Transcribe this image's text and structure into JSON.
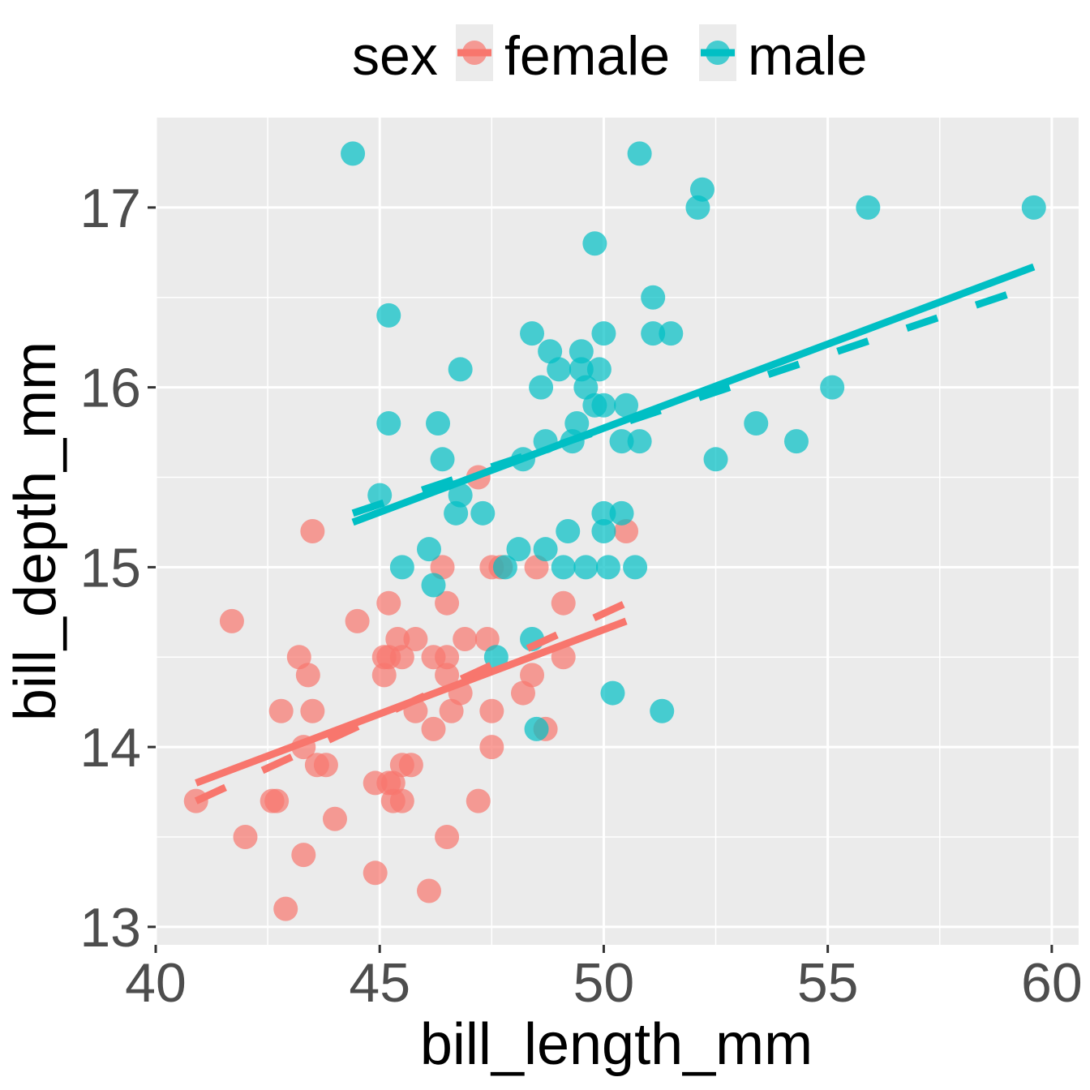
{
  "chart_data": {
    "type": "scatter",
    "xlabel": "bill_length_mm",
    "ylabel": "bill_depth_mm",
    "xlim": [
      40,
      60.6
    ],
    "ylim": [
      12.9,
      17.5
    ],
    "x_ticks": [
      40,
      45,
      50,
      55,
      60
    ],
    "y_ticks": [
      13,
      14,
      15,
      16,
      17
    ],
    "x_tick_labels": [
      "40",
      "45",
      "50",
      "55",
      "60"
    ],
    "y_tick_labels": [
      "13",
      "14",
      "15",
      "16",
      "17"
    ],
    "grid": true,
    "legend": {
      "title": "sex",
      "position": "top",
      "entries": [
        "female",
        "male"
      ]
    },
    "series": [
      {
        "name": "female",
        "color": "#F8766D",
        "points": [
          [
            40.9,
            13.7
          ],
          [
            41.7,
            14.7
          ],
          [
            42.0,
            13.5
          ],
          [
            42.6,
            13.7
          ],
          [
            42.7,
            13.7
          ],
          [
            42.8,
            14.2
          ],
          [
            42.9,
            13.1
          ],
          [
            43.2,
            14.5
          ],
          [
            43.3,
            13.4
          ],
          [
            43.3,
            14.0
          ],
          [
            43.4,
            14.4
          ],
          [
            43.5,
            15.2
          ],
          [
            43.5,
            14.2
          ],
          [
            43.6,
            13.9
          ],
          [
            43.8,
            13.9
          ],
          [
            44.0,
            13.6
          ],
          [
            44.5,
            14.7
          ],
          [
            44.9,
            13.8
          ],
          [
            44.9,
            13.3
          ],
          [
            45.1,
            14.5
          ],
          [
            45.1,
            14.4
          ],
          [
            45.2,
            14.5
          ],
          [
            45.2,
            14.8
          ],
          [
            45.2,
            13.8
          ],
          [
            45.3,
            13.8
          ],
          [
            45.3,
            13.7
          ],
          [
            45.4,
            14.6
          ],
          [
            45.5,
            14.5
          ],
          [
            45.5,
            13.9
          ],
          [
            45.5,
            13.7
          ],
          [
            45.7,
            13.9
          ],
          [
            45.8,
            14.6
          ],
          [
            45.8,
            14.2
          ],
          [
            46.1,
            13.2
          ],
          [
            46.2,
            14.1
          ],
          [
            46.2,
            14.5
          ],
          [
            46.4,
            15.0
          ],
          [
            46.5,
            14.5
          ],
          [
            46.5,
            14.8
          ],
          [
            46.5,
            14.4
          ],
          [
            46.5,
            13.5
          ],
          [
            46.6,
            14.2
          ],
          [
            46.8,
            14.3
          ],
          [
            46.9,
            14.6
          ],
          [
            47.2,
            13.7
          ],
          [
            47.2,
            15.5
          ],
          [
            47.4,
            14.6
          ],
          [
            47.5,
            14.2
          ],
          [
            47.5,
            14.0
          ],
          [
            47.5,
            15.0
          ],
          [
            47.7,
            15.0
          ],
          [
            48.2,
            14.3
          ],
          [
            48.4,
            14.4
          ],
          [
            48.5,
            15.0
          ],
          [
            48.7,
            14.1
          ],
          [
            49.1,
            14.8
          ],
          [
            49.1,
            14.5
          ],
          [
            50.5,
            15.2
          ]
        ],
        "fit_solid": [
          [
            40.9,
            13.8
          ],
          [
            50.5,
            14.7
          ]
        ],
        "fit_dashed": [
          [
            40.9,
            13.7
          ],
          [
            50.5,
            14.8
          ]
        ]
      },
      {
        "name": "male",
        "color": "#00BFC4",
        "points": [
          [
            44.4,
            17.3
          ],
          [
            45.0,
            15.4
          ],
          [
            45.2,
            16.4
          ],
          [
            45.2,
            15.8
          ],
          [
            45.5,
            15.0
          ],
          [
            46.1,
            15.1
          ],
          [
            46.2,
            14.9
          ],
          [
            46.3,
            15.8
          ],
          [
            46.4,
            15.6
          ],
          [
            46.7,
            15.3
          ],
          [
            46.8,
            15.4
          ],
          [
            46.8,
            16.1
          ],
          [
            47.3,
            15.3
          ],
          [
            47.6,
            14.5
          ],
          [
            47.8,
            15.0
          ],
          [
            48.1,
            15.1
          ],
          [
            48.2,
            15.6
          ],
          [
            48.4,
            16.3
          ],
          [
            48.4,
            14.6
          ],
          [
            48.5,
            14.1
          ],
          [
            48.6,
            16.0
          ],
          [
            48.7,
            15.7
          ],
          [
            48.7,
            15.1
          ],
          [
            48.8,
            16.2
          ],
          [
            49.0,
            16.1
          ],
          [
            49.1,
            15.0
          ],
          [
            49.2,
            15.2
          ],
          [
            49.3,
            15.7
          ],
          [
            49.4,
            15.8
          ],
          [
            49.5,
            16.2
          ],
          [
            49.5,
            16.1
          ],
          [
            49.6,
            16.0
          ],
          [
            49.6,
            15.0
          ],
          [
            49.8,
            16.8
          ],
          [
            49.8,
            15.9
          ],
          [
            49.9,
            16.1
          ],
          [
            50.0,
            16.3
          ],
          [
            50.0,
            15.9
          ],
          [
            50.0,
            15.3
          ],
          [
            50.0,
            15.2
          ],
          [
            50.1,
            15.0
          ],
          [
            50.2,
            14.3
          ],
          [
            50.4,
            15.7
          ],
          [
            50.4,
            15.3
          ],
          [
            50.5,
            15.9
          ],
          [
            50.7,
            15.0
          ],
          [
            50.8,
            17.3
          ],
          [
            50.8,
            15.7
          ],
          [
            51.1,
            16.5
          ],
          [
            51.1,
            16.3
          ],
          [
            51.3,
            14.2
          ],
          [
            51.5,
            16.3
          ],
          [
            52.1,
            17.0
          ],
          [
            52.2,
            17.1
          ],
          [
            52.5,
            15.6
          ],
          [
            53.4,
            15.8
          ],
          [
            54.3,
            15.7
          ],
          [
            55.1,
            16.0
          ],
          [
            55.9,
            17.0
          ],
          [
            59.6,
            17.0
          ]
        ],
        "fit_solid": [
          [
            44.4,
            15.25
          ],
          [
            59.6,
            16.67
          ]
        ],
        "fit_dashed": [
          [
            44.4,
            15.3
          ],
          [
            59.3,
            16.54
          ]
        ]
      }
    ]
  }
}
